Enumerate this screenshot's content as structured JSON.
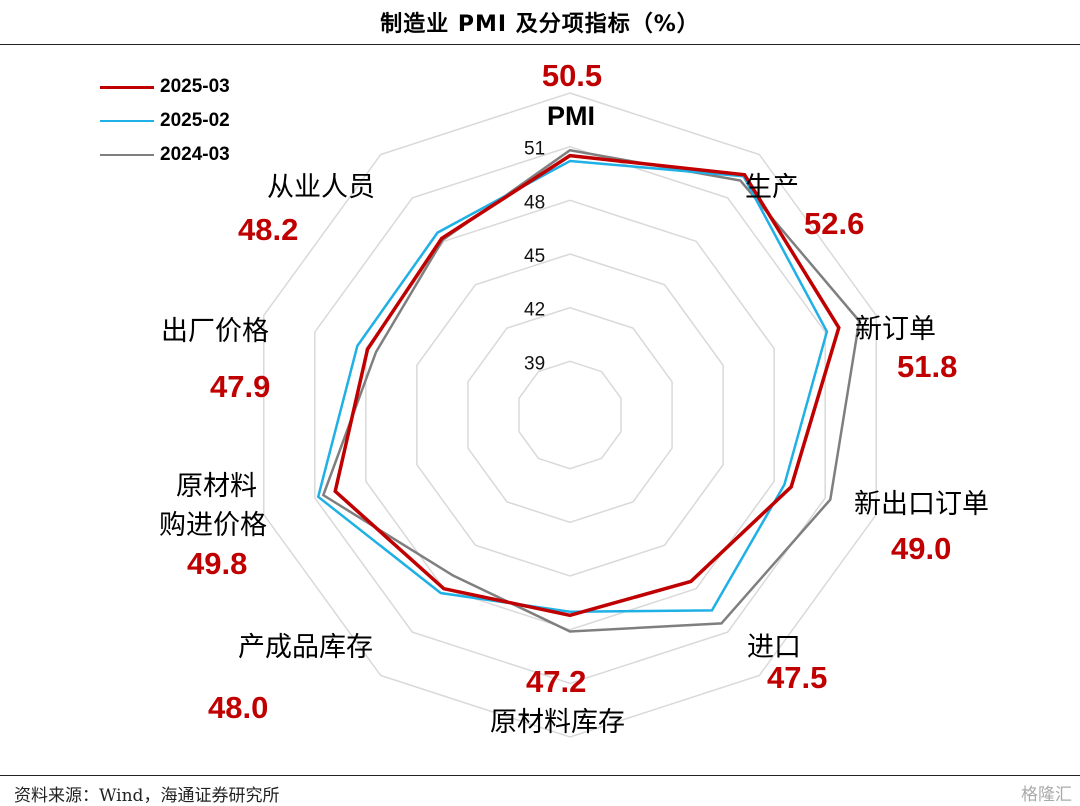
{
  "header": {
    "title": "制造业 PMI 及分项指标（%）"
  },
  "footer": {
    "source": "资料来源：Wind，海通证券研究所",
    "watermark": "格隆汇"
  },
  "colors": {
    "s1": "#c00000",
    "s2": "#1fb0e6",
    "s3": "#7f7f7f",
    "grid": "#d9d9d9",
    "value": "#c00000"
  },
  "chart_data": {
    "type": "radar",
    "title": "制造业 PMI 及分项指标（%）",
    "radial_ticks": [
      51,
      48,
      45,
      42,
      39
    ],
    "range": [
      36,
      54
    ],
    "grid": true,
    "legend_position": "top-left",
    "center_label": {
      "name": "PMI",
      "value": "50.5"
    },
    "categories": [
      "PMI",
      "生产",
      "新订单",
      "新出口订单",
      "进口",
      "原材料库存",
      "产成品库存",
      "原材料购进价格",
      "出厂价格",
      "从业人员"
    ],
    "category_labels": [
      {
        "name": "生产",
        "value": "52.6"
      },
      {
        "name": "新订单",
        "value": "51.8"
      },
      {
        "name": "新出口订单",
        "value": "49.0"
      },
      {
        "name": "进口",
        "value": "47.5"
      },
      {
        "name": "原材料库存",
        "value": "47.2"
      },
      {
        "name": "产成品库存",
        "value": "48.0"
      },
      {
        "name": "原材料 购进价格",
        "value": "49.8"
      },
      {
        "name": "出厂价格",
        "value": "47.9"
      },
      {
        "name": "从业人员",
        "value": "48.2"
      }
    ],
    "series": [
      {
        "name": "2025-03",
        "values": [
          50.5,
          52.6,
          51.8,
          49.0,
          47.5,
          47.2,
          48.0,
          49.8,
          47.9,
          48.2
        ]
      },
      {
        "name": "2025-02",
        "values": [
          50.2,
          52.5,
          51.1,
          48.6,
          49.5,
          47.0,
          48.3,
          50.8,
          48.5,
          48.6
        ]
      },
      {
        "name": "2024-03",
        "values": [
          50.8,
          52.2,
          53.0,
          51.3,
          50.4,
          48.1,
          47.1,
          50.5,
          47.4,
          48.1
        ]
      }
    ]
  }
}
